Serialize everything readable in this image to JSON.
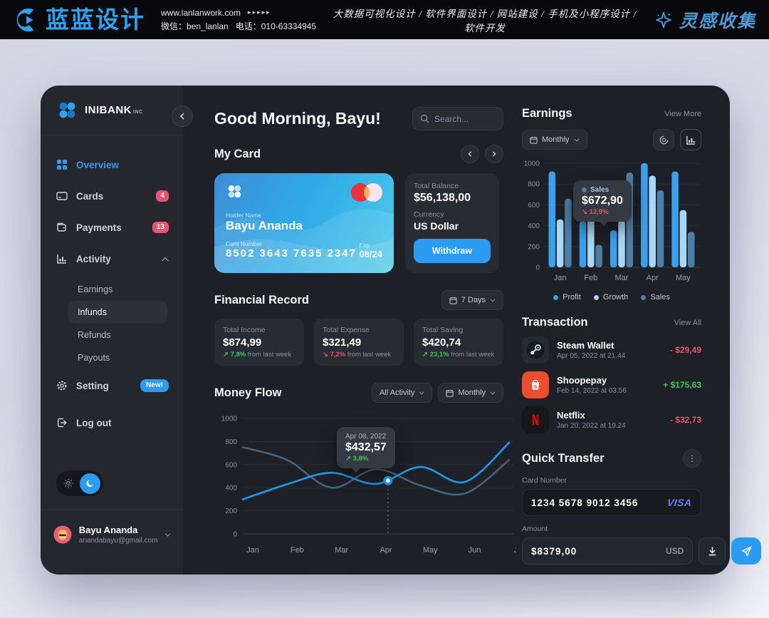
{
  "top_bar": {
    "brand": "蓝蓝设计",
    "website": "www.lanlanwork.com",
    "website_arrows": "▸▸▸▸▸",
    "wechat": "微信：ben_lanlan",
    "phone": "电话：010-63334945",
    "services": "大数据可视化设计 / 软件界面设计 / 网站建设 / 手机及小程序设计 / 软件开发",
    "collect": "灵感收集"
  },
  "sidebar": {
    "brand": "INIBANK",
    "brand_suffix": "INC",
    "overview": "Overview",
    "cards": "Cards",
    "cards_badge": "4",
    "payments": "Payments",
    "payments_badge": "13",
    "activity": "Activity",
    "activity_items": [
      {
        "label": "Earnings"
      },
      {
        "label": "Infunds"
      },
      {
        "label": "Refunds"
      },
      {
        "label": "Payouts"
      }
    ],
    "setting": "Setting",
    "setting_badge": "New!",
    "logout": "Log out",
    "user": {
      "name": "Bayu Ananda",
      "email": "anandabayu@gmail.com"
    }
  },
  "main": {
    "greeting": "Good Morning, Bayu!",
    "search_placeholder": "Search...",
    "my_card": {
      "title": "My Card",
      "holder_label": "Holder Name",
      "holder": "Bayu Ananda",
      "number_label": "Card Number",
      "number": "8502  3643  7635  2347",
      "exp_label": "Exp",
      "exp": "08/24"
    },
    "balance": {
      "label": "Total Balance",
      "value": "$56,138,00",
      "currency_label": "Currency",
      "currency": "US Dollar",
      "withdraw": "Withdraw"
    },
    "financial": {
      "title": "Financial Record",
      "range": "7 Days",
      "stats": [
        {
          "label": "Total Income",
          "value": "$874,99",
          "delta": "↗ 7,8%",
          "suffix": "from last week",
          "trend": "up"
        },
        {
          "label": "Total Expense",
          "value": "$321,49",
          "delta": "↘ 7,2%",
          "suffix": "from last week",
          "trend": "down"
        },
        {
          "label": "Total Saving",
          "value": "$420,74",
          "delta": "↗ 23,1%",
          "suffix": "from last week",
          "trend": "up"
        }
      ]
    },
    "money_flow": {
      "title": "Money Flow",
      "filter": "All Activity",
      "period": "Monthly"
    }
  },
  "right": {
    "earnings": {
      "title": "Earnings",
      "view_more": "View More",
      "period": "Monthly"
    },
    "transactions": {
      "title": "Transaction",
      "view_all": "View All",
      "items": [
        {
          "name": "Steam Wallet",
          "date": "Apr 05, 2022 at 21.44",
          "amount": "- $29,49",
          "trend": "neg",
          "icon": "steam"
        },
        {
          "name": "Shoopepay",
          "date": "Feb 14, 2022 at 03.56",
          "amount": "+ $175,63",
          "trend": "pos",
          "icon": "shopee"
        },
        {
          "name": "Netflix",
          "date": "Jan 20, 2022 at 19.24",
          "amount": "- $32,73",
          "trend": "neg",
          "icon": "netflix"
        }
      ]
    },
    "quick_transfer": {
      "title": "Quick Transfer",
      "card_number_label": "Card Number",
      "card_number": "1234 5678 9012 3456",
      "card_brand": "VISA",
      "amount_label": "Amount",
      "amount": "$8379,00",
      "currency": "USD"
    }
  },
  "chart_data": [
    {
      "id": "earnings_bar",
      "type": "bar",
      "title": "Earnings",
      "categories": [
        "Jan",
        "Feb",
        "Mar",
        "Apr",
        "May"
      ],
      "series": [
        {
          "name": "Profit",
          "color": "#3aa0ec",
          "values": [
            920,
            440,
            355,
            1000,
            920
          ]
        },
        {
          "name": "Growth",
          "color": "#a9d7f6",
          "values": [
            460,
            820,
            450,
            880,
            550
          ]
        },
        {
          "name": "Sales",
          "color": "#4e7da6",
          "values": [
            660,
            215,
            910,
            740,
            340
          ]
        }
      ],
      "ylim": [
        0,
        1000
      ],
      "yticks": [
        0,
        200,
        400,
        600,
        800,
        1000
      ],
      "grid": true,
      "legend_position": "bottom",
      "tooltip": {
        "series": "Sales",
        "value": "$672,90",
        "delta": "↘ 12,9%",
        "trend": "down"
      }
    },
    {
      "id": "money_flow_line",
      "type": "line",
      "title": "Money Flow",
      "x": [
        "Jan",
        "Feb",
        "Mar",
        "Apr",
        "May",
        "Jun",
        "Jul"
      ],
      "series": [
        {
          "name": "flow-secondary",
          "color": "#546e88",
          "values": [
            750,
            640,
            400,
            560,
            420,
            350,
            640
          ]
        },
        {
          "name": "flow-primary",
          "color": "#1e9bf0",
          "values": [
            300,
            430,
            530,
            433,
            580,
            450,
            790
          ]
        }
      ],
      "ylim": [
        0,
        1000
      ],
      "yticks": [
        0,
        200,
        400,
        600,
        800,
        1000
      ],
      "grid": true,
      "marker": {
        "date": "Apr 08, 2022",
        "value": 432.57,
        "label": "$432,57",
        "delta": "↗ 3,8%",
        "trend": "up",
        "series_index": 1,
        "segment": 3,
        "t": 0.27
      }
    }
  ],
  "colors": {
    "accent": "#2b9cf2",
    "negative": "#e8536f",
    "positive": "#3fca60",
    "badge": "#e8536f"
  }
}
